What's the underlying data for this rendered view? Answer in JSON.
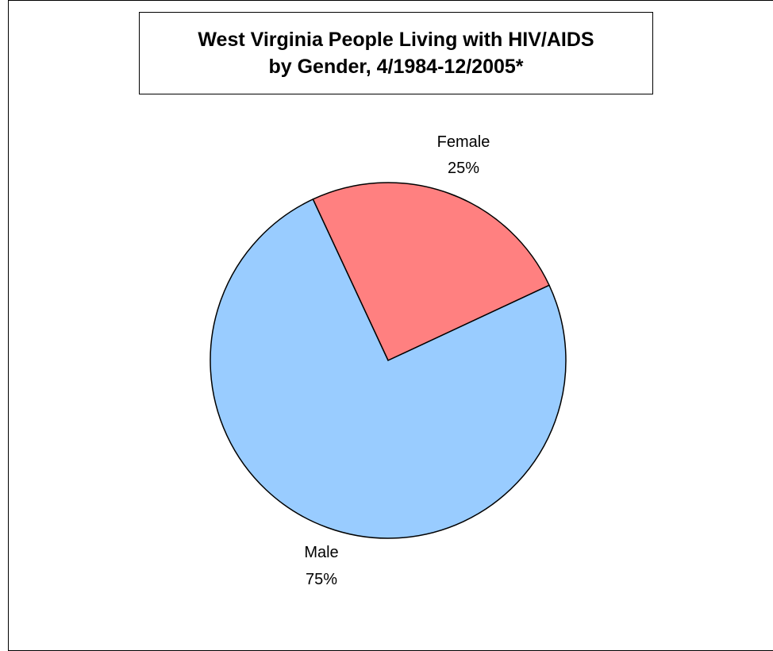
{
  "chart_data": {
    "type": "pie",
    "title": "West Virginia People Living with HIV/AIDS",
    "subtitle": "by Gender, 4/1984-12/2005*",
    "slices": [
      {
        "label": "Female",
        "value": 25,
        "value_label": "25%",
        "color": "#FF8080"
      },
      {
        "label": "Male",
        "value": 75,
        "value_label": "75%",
        "color": "#99CCFF"
      }
    ],
    "start_angle_deg": -25,
    "legend": "none",
    "outline_color": "#000000"
  }
}
